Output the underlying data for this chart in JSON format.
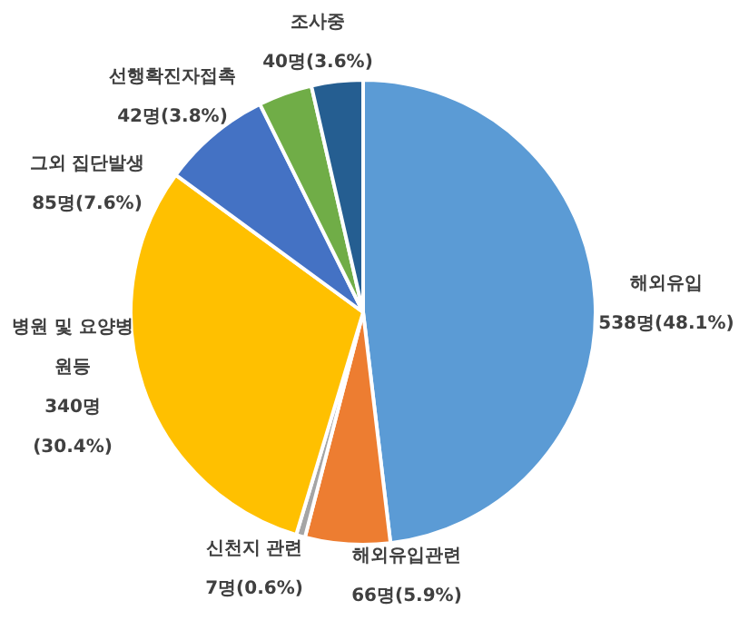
{
  "chart_data": {
    "type": "pie",
    "categories": [
      "해외유입",
      "해외유입관련",
      "신천지 관련",
      "병원 및 요양병원등",
      "그외 집단발생",
      "선행확진자접촉",
      "조사중"
    ],
    "values": [
      538,
      66,
      7,
      340,
      85,
      42,
      40
    ],
    "value_labels": [
      "538명(48.1%)",
      "66명(5.9%)",
      "7명(0.6%)",
      "340명(30.4%)",
      "85명(7.6%)",
      "42명(3.8%)",
      "40명(3.6%)"
    ],
    "colors": [
      "#5b9bd5",
      "#ed7d31",
      "#a5a5a5",
      "#ffc000",
      "#4472c4",
      "#70ad47",
      "#255e91"
    ],
    "legend": false
  }
}
